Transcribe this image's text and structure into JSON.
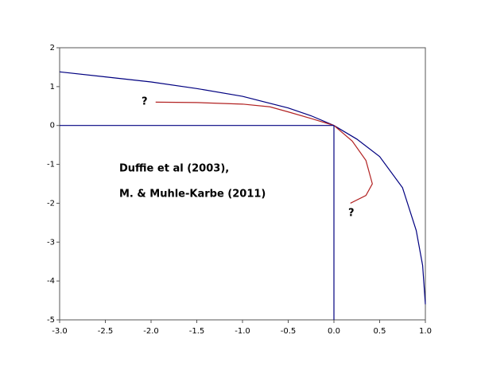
{
  "chart_data": {
    "type": "line",
    "xlim": [
      -3,
      1
    ],
    "ylim": [
      -5,
      2
    ],
    "xticks": [
      {
        "value": -3,
        "label": "-3.0"
      },
      {
        "value": -2.5,
        "label": "-2.5"
      },
      {
        "value": -2,
        "label": "-2.0"
      },
      {
        "value": -1.5,
        "label": "-1.5"
      },
      {
        "value": -1,
        "label": "-1.0"
      },
      {
        "value": -0.5,
        "label": "-0.5"
      },
      {
        "value": 0,
        "label": "0.0"
      },
      {
        "value": 0.5,
        "label": "0.5"
      },
      {
        "value": 1,
        "label": "1.0"
      }
    ],
    "yticks": [
      2,
      1,
      0,
      -1,
      -2,
      -3,
      -4,
      -5
    ],
    "series": [
      {
        "color": "#000080",
        "x": [
          -3,
          -2.5,
          -2,
          -1.5,
          -1,
          -0.5,
          -0.25,
          0,
          0.25,
          0.5,
          0.75,
          0.9,
          0.97,
          1
        ],
        "values": [
          1.38,
          1.25,
          1.12,
          0.95,
          0.75,
          0.45,
          0.25,
          0,
          -0.35,
          -0.8,
          -1.6,
          -2.7,
          -3.6,
          -4.6
        ]
      },
      {
        "color": "#b22222",
        "x": [
          -1.95,
          -1.5,
          -1,
          -0.7,
          -0.5,
          -0.25,
          0,
          0.2,
          0.35,
          0.42,
          0.35,
          0.18
        ],
        "values": [
          0.6,
          0.59,
          0.55,
          0.48,
          0.35,
          0.18,
          0,
          -0.4,
          -0.9,
          -1.5,
          -1.8,
          -2
        ]
      },
      {
        "color": "#000080",
        "x": [
          -3,
          0
        ],
        "values": [
          0,
          0
        ]
      },
      {
        "color": "#000080",
        "x": [
          0,
          0
        ],
        "values": [
          0,
          -5
        ]
      }
    ],
    "annotations": [
      "?",
      "?",
      "Duffie et al (2003),",
      "M. & Muhle-Karbe (2011)"
    ]
  }
}
